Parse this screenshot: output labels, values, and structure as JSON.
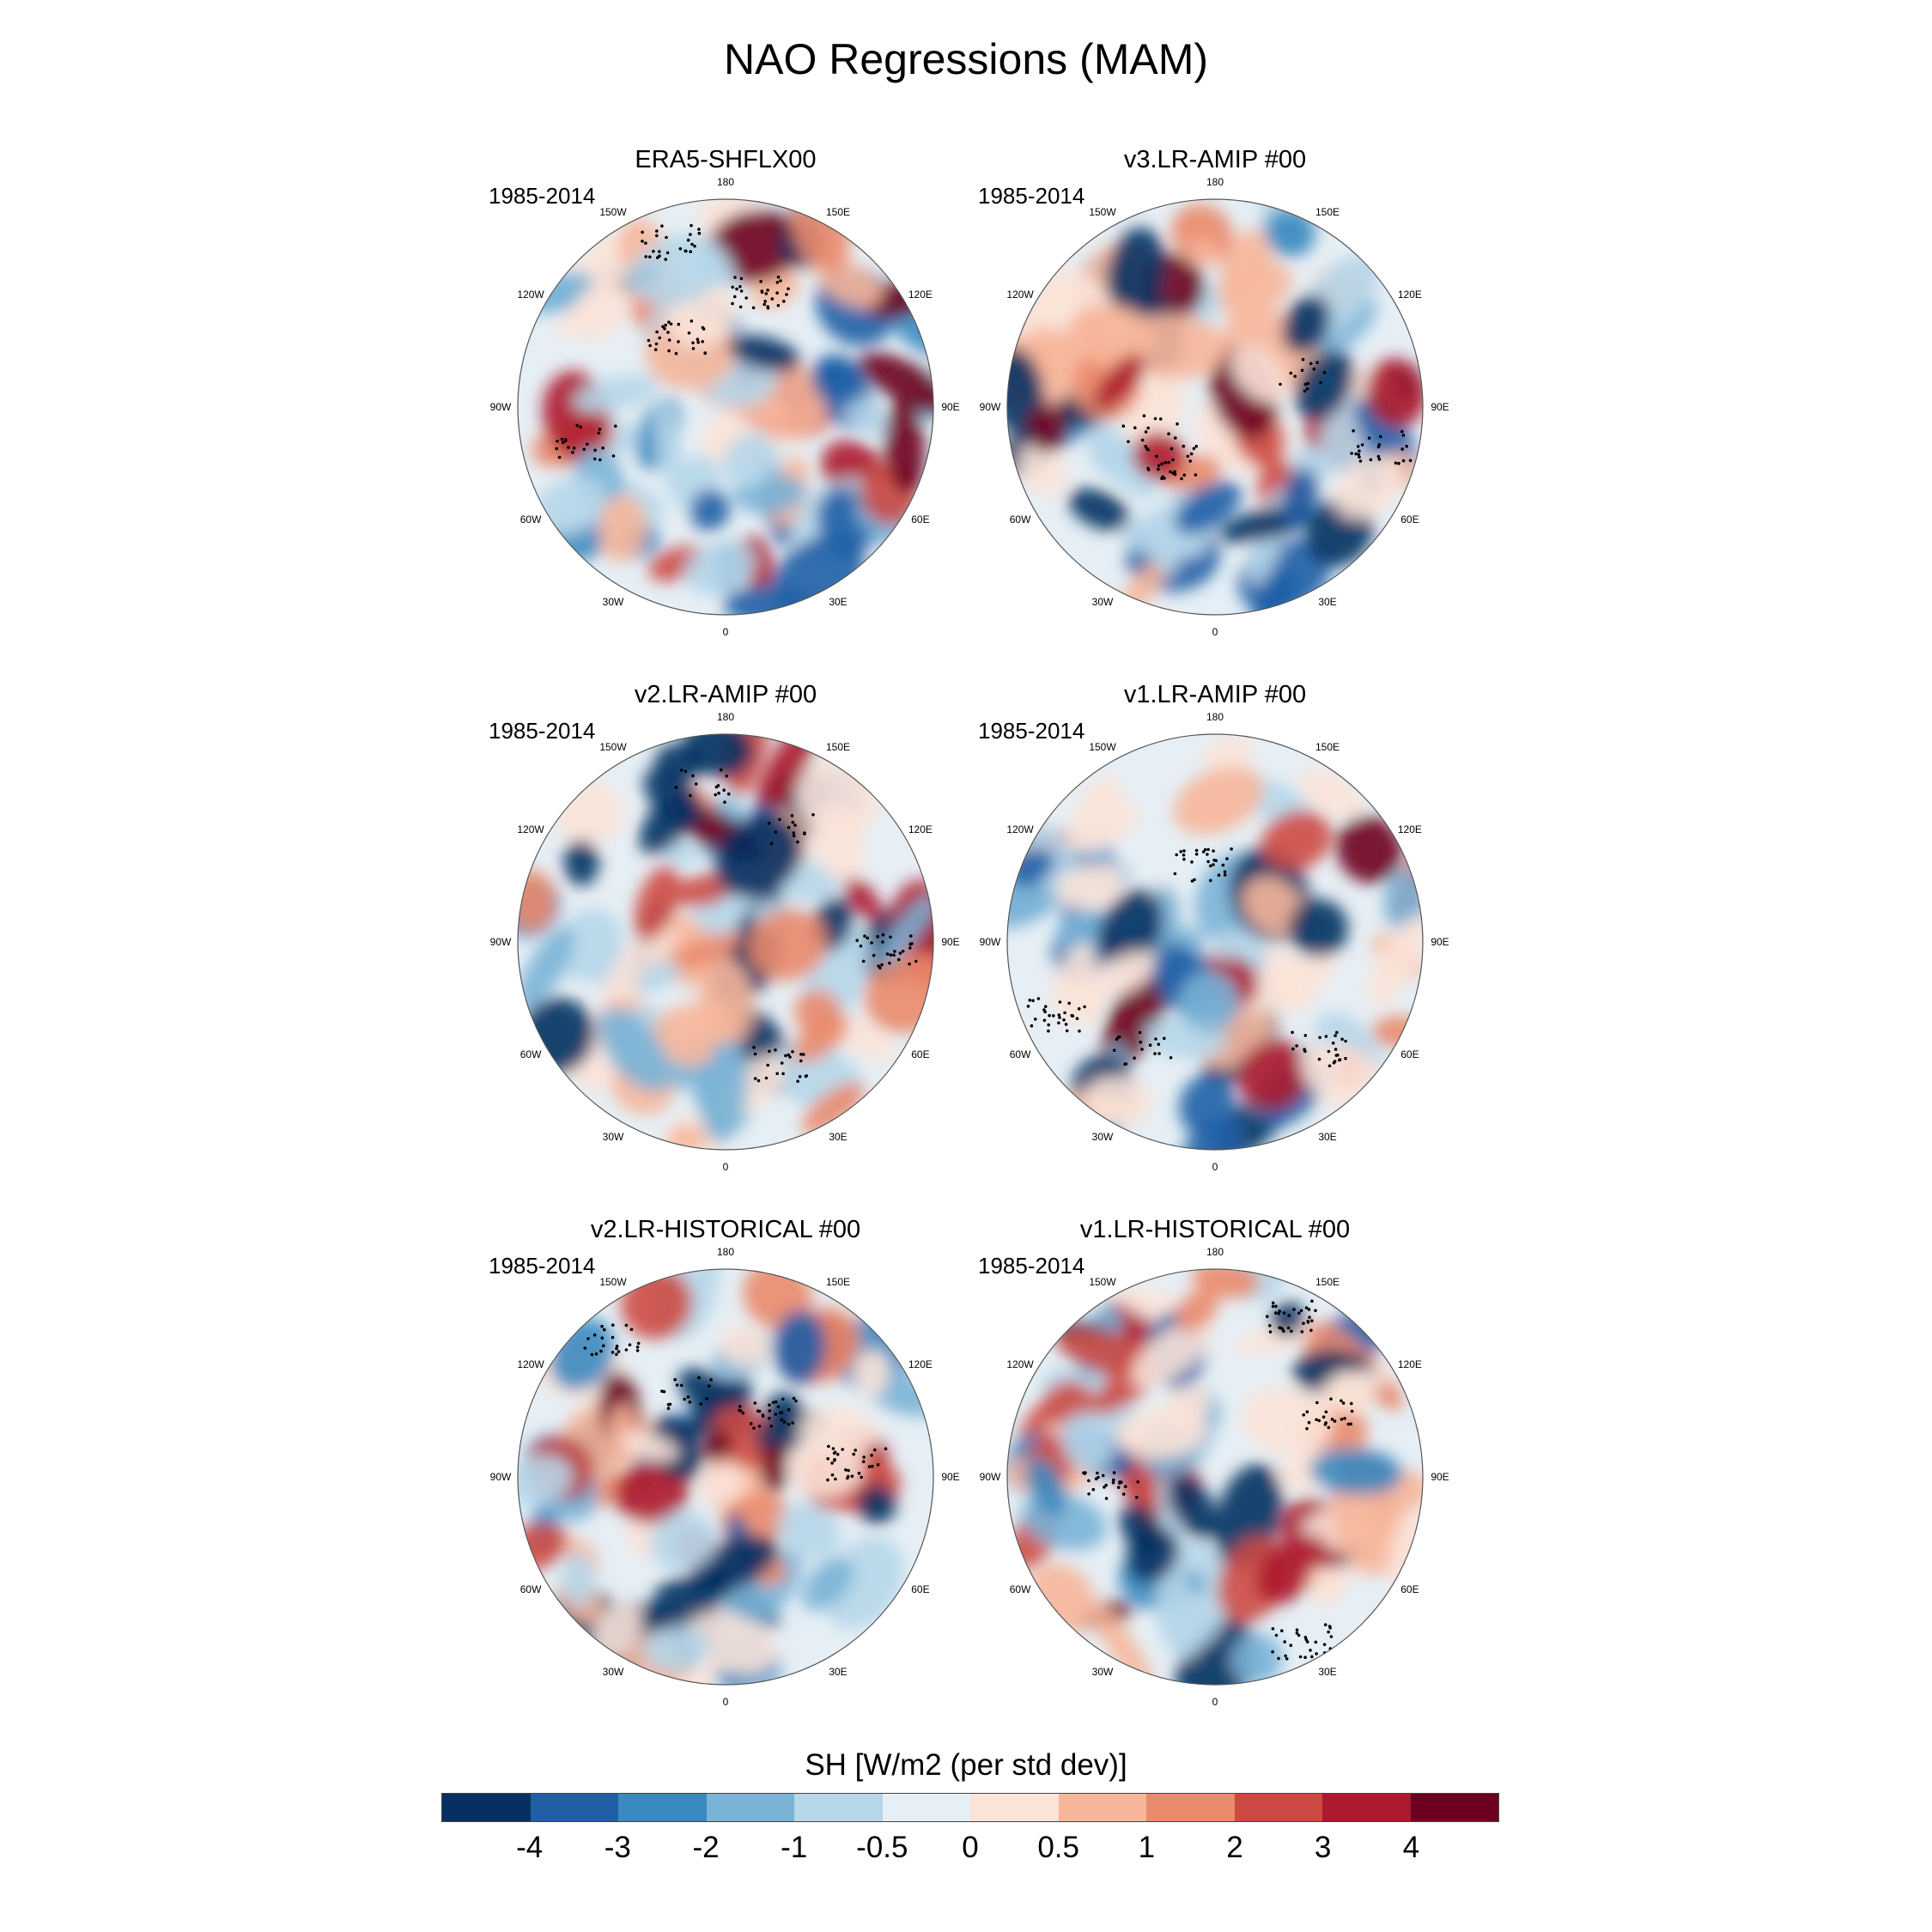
{
  "figure": {
    "title": "NAO Regressions (MAM)"
  },
  "chart_data": {
    "type": "heatmap",
    "title": "NAO Regressions (MAM)",
    "projection": "north-polar-stereographic",
    "longitude_labels": [
      "180",
      "150E",
      "120E",
      "90E",
      "60E",
      "30E",
      "0",
      "30W",
      "60W",
      "90W",
      "120W",
      "150W"
    ],
    "panels": [
      {
        "title": "ERA5-SHFLX00",
        "period": "1985-2014"
      },
      {
        "title": "v3.LR-AMIP  #00",
        "period": "1985-2014"
      },
      {
        "title": "v2.LR-AMIP  #00",
        "period": "1985-2014"
      },
      {
        "title": "v1.LR-AMIP  #00",
        "period": "1985-2014"
      },
      {
        "title": "v2.LR-HISTORICAL  #00",
        "period": "1985-2014"
      },
      {
        "title": "v1.LR-HISTORICAL  #00",
        "period": "1985-2014"
      }
    ],
    "colorbar": {
      "title": "SH [W/m2 (per std dev)]",
      "tick_labels": [
        "-4",
        "-3",
        "-2",
        "-1",
        "-0.5",
        "0",
        "0.5",
        "1",
        "2",
        "3",
        "4"
      ],
      "colors": [
        "#053061",
        "#1f5fa6",
        "#3a89c0",
        "#7ab3d6",
        "#b6d6e9",
        "#e6eff5",
        "#fbe3d8",
        "#f7b69a",
        "#ea8a6c",
        "#cd4a43",
        "#ad1a2e",
        "#6d0020"
      ]
    }
  }
}
